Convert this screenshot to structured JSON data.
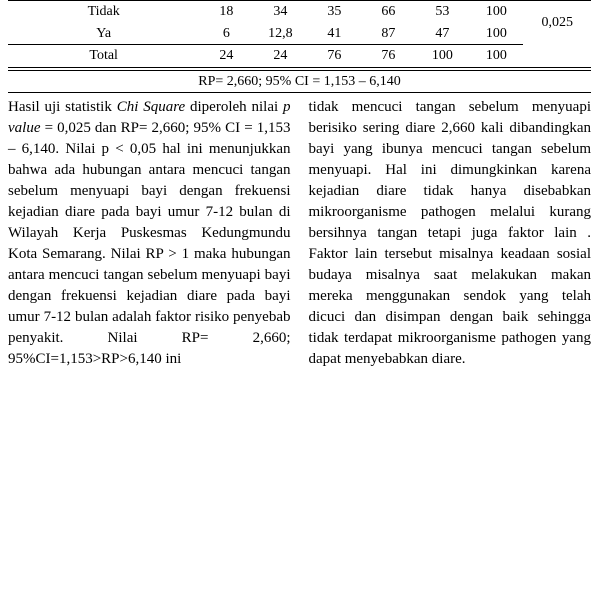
{
  "table": {
    "rows": [
      {
        "label": "Tidak",
        "c1": "18",
        "c2": "34",
        "c3": "35",
        "c4": "66",
        "c5": "53",
        "c6": "100"
      },
      {
        "label": "Ya",
        "c1": "6",
        "c2": "12,8",
        "c3": "41",
        "c4": "87",
        "c5": "47",
        "c6": "100"
      },
      {
        "label": "Total",
        "c1": "24",
        "c2": "24",
        "c3": "76",
        "c4": "76",
        "c5": "100",
        "c6": "100"
      }
    ],
    "pvalue": "0,025",
    "stat_line": "RP= 2,660;  95% CI = 1,153 – 6,140"
  },
  "body": {
    "left": {
      "prefix": "Hasil uji statistik ",
      "chi": "Chi Square",
      "mid": " diperoleh nilai ",
      "pval": "p value",
      "rest": " = 0,025 dan RP= 2,660; 95% CI = 1,153 – 6,140. Nilai p < 0,05 hal ini menunjukkan bahwa  ada hubungan antara mencuci tangan sebelum menyuapi bayi dengan frekuensi kejadian diare pada bayi umur 7-12 bulan di Wilayah Kerja Puskesmas Kedungmundu Kota Semarang. Nilai RP > 1 maka hubungan antara mencuci tangan sebelum menyuapi bayi dengan frekuensi kejadian diare pada bayi umur 7-12 bulan adalah faktor risiko penyebab penyakit. Nilai RP= 2,660; 95%CI=1,153>RP>6,140 ini"
    },
    "right": "tidak mencuci tangan sebelum menyuapi berisiko sering diare 2,660 kali dibandingkan bayi yang ibunya mencuci tangan sebelum menyuapi. Hal ini dimungkinkan karena kejadian diare tidak hanya disebabkan mikroorganisme pathogen melalui kurang bersihnya tangan tetapi juga faktor lain . Faktor lain tersebut misalnya keadaan sosial budaya misalnya saat melakukan makan mereka menggunakan sendok yang telah dicuci dan disimpan dengan baik sehingga tidak terdapat mikroorganisme pathogen yang dapat menyebabkan diare."
  }
}
